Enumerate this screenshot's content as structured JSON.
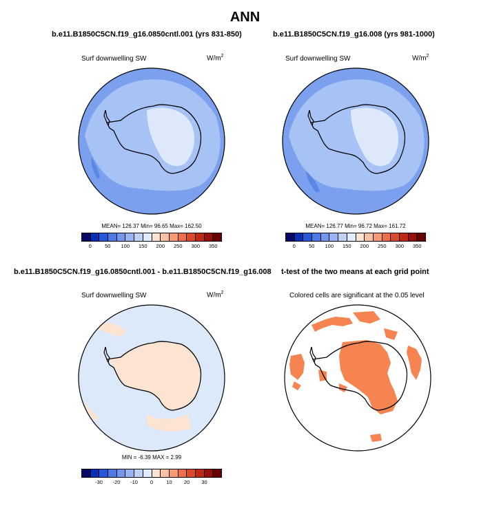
{
  "main_title": "ANN",
  "panels": [
    {
      "title": "b.e11.B1850C5CN.f19_g16.0850cntl.001 (yrs 831-850)",
      "variable": "Surf downwelling SW",
      "units_base": "W/m",
      "units_exp": "2",
      "stats": "MEAN= 126.37  Min= 96.65  Max= 162.50"
    },
    {
      "title": "b.e11.B1850C5CN.f19_g16.008 (yrs 981-1000)",
      "variable": "Surf downwelling SW",
      "units_base": "W/m",
      "units_exp": "2",
      "stats": "MEAN= 126.77  Min= 96.72  Max= 161.72"
    },
    {
      "title": "b.e11.B1850C5CN.f19_g16.0850cntl.001 - b.e11.B1850C5CN.f19_g16.008",
      "variable": "Surf downwelling SW",
      "units_base": "W/m",
      "units_exp": "2",
      "stats": "MIN =  -6.39 MAX =  2.99"
    },
    {
      "title": "t-test of the two means at each grid point",
      "variable": "Colored cells are significant at the 0.05 level"
    }
  ],
  "colorbar_abs": {
    "colors": [
      "#08086b",
      "#0a2fb5",
      "#2458d8",
      "#4a7be6",
      "#7197ee",
      "#98b4f2",
      "#bfd2f8",
      "#e1ecfc",
      "#fde4d2",
      "#fbc2a2",
      "#f79a72",
      "#ef6f4c",
      "#dd4a2a",
      "#c02a14",
      "#98100a",
      "#6a0000"
    ],
    "tick_labels": [
      "0",
      "50",
      "100",
      "150",
      "200",
      "250",
      "300",
      "350"
    ]
  },
  "colorbar_diff": {
    "colors": [
      "#08086b",
      "#0a2fb5",
      "#2458d8",
      "#4a7be6",
      "#7197ee",
      "#98b4f2",
      "#bfd2f8",
      "#e1ecfc",
      "#fde4d2",
      "#fbc2a2",
      "#f79a72",
      "#ef6f4c",
      "#dd4a2a",
      "#c02a14",
      "#98100a",
      "#6a0000"
    ],
    "tick_labels": [
      "-30",
      "-20",
      "-10",
      "0",
      "10",
      "20",
      "30"
    ]
  },
  "map_colors": {
    "ocean_outer": "#7aa0ee",
    "ocean_mid": "#a7c2f4",
    "ice_inner": "#dde9fb",
    "diff_ocean": "#dce9fb",
    "diff_land": "#fde4d2",
    "signif": "#f58450"
  }
}
